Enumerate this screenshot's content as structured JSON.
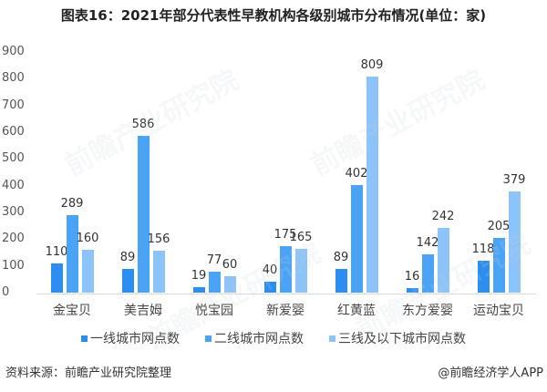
{
  "title": "图表16：2021年部分代表性早教机构各级别城市分布情况(单位：家)",
  "footer": {
    "source": "资料来源：前瞻产业研究院整理",
    "credit": "@前瞻经济学人APP"
  },
  "watermark": "前瞻产业研究院",
  "chart_data": {
    "type": "bar",
    "title": "图表16：2021年部分代表性早教机构各级别城市分布情况(单位：家)",
    "xlabel": "",
    "ylabel": "",
    "ylim": [
      0,
      900
    ],
    "yticks": [
      0,
      100,
      200,
      300,
      400,
      500,
      600,
      700,
      800,
      900
    ],
    "grid": false,
    "legend_position": "bottom",
    "categories": [
      "金宝贝",
      "美吉姆",
      "悦宝园",
      "新爱婴",
      "红黄蓝",
      "东方爱婴",
      "运动宝贝"
    ],
    "series": [
      {
        "name": "一线城市网点数",
        "color": "#2b8ef0",
        "values": [
          110,
          89,
          19,
          40,
          89,
          16,
          118
        ]
      },
      {
        "name": "二线城市网点数",
        "color": "#4ba3f5",
        "values": [
          289,
          586,
          77,
          175,
          402,
          142,
          205
        ]
      },
      {
        "name": "三线及以下城市网点数",
        "color": "#8cc3f8",
        "values": [
          160,
          156,
          60,
          165,
          809,
          242,
          379
        ]
      }
    ]
  }
}
